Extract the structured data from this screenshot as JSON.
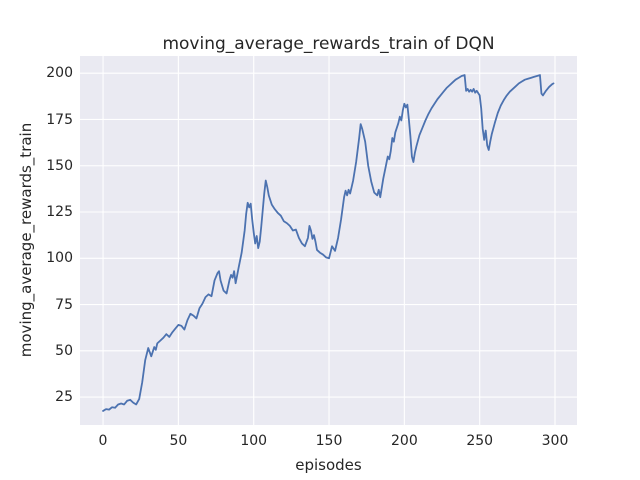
{
  "figure": {
    "title": "moving_average_rewards_train of DQN"
  },
  "chart_data": {
    "type": "line",
    "title": "moving_average_rewards_train of DQN",
    "xlabel": "episodes",
    "ylabel": "moving_average_rewards_train",
    "xlim": [
      -15.3,
      314.6
    ],
    "ylim": [
      9.9,
      209.3
    ],
    "xticks": [
      0,
      50,
      100,
      150,
      200,
      250,
      300
    ],
    "yticks": [
      25,
      50,
      75,
      100,
      125,
      150,
      175,
      200
    ],
    "grid": true,
    "legend_position": "none",
    "style": {
      "axes_background": "#EAEAF2",
      "grid_color": "#FFFFFF",
      "line_color": "#4C72B0",
      "text_color": "#262626",
      "line_width": 1.8
    },
    "series": [
      {
        "name": "moving_average_rewards_train",
        "x": [
          0,
          2,
          4,
          6,
          8,
          10,
          12,
          14,
          16,
          18,
          20,
          22,
          24,
          26,
          28,
          30,
          32,
          34,
          35,
          36,
          38,
          40,
          42,
          44,
          46,
          48,
          50,
          52,
          54,
          56,
          58,
          60,
          62,
          64,
          66,
          68,
          70,
          72,
          74,
          76,
          77,
          78,
          80,
          82,
          84,
          85,
          86,
          87,
          88,
          90,
          92,
          94,
          95,
          96,
          97,
          98,
          99,
          100,
          101,
          102,
          103,
          104,
          105,
          106,
          107,
          108,
          109,
          110,
          112,
          114,
          116,
          118,
          120,
          122,
          124,
          126,
          128,
          130,
          132,
          134,
          136,
          137,
          138,
          139,
          140,
          141,
          142,
          144,
          146,
          148,
          150,
          152,
          154,
          156,
          158,
          160,
          161,
          162,
          163,
          164,
          165,
          166,
          168,
          170,
          171,
          172,
          174,
          176,
          178,
          180,
          182,
          183,
          184,
          186,
          188,
          189,
          190,
          191,
          192,
          193,
          194,
          196,
          197,
          198,
          199,
          200,
          201,
          202,
          203,
          204,
          205,
          206,
          207,
          208,
          210,
          212,
          214,
          216,
          218,
          220,
          222,
          224,
          226,
          228,
          230,
          232,
          234,
          236,
          238,
          240,
          241,
          242,
          243,
          244,
          245,
          246,
          247,
          248,
          250,
          251,
          252,
          253,
          254,
          255,
          256,
          257,
          258,
          260,
          262,
          264,
          266,
          268,
          270,
          272,
          274,
          276,
          278,
          280,
          282,
          284,
          286,
          288,
          290,
          291,
          292,
          294,
          296,
          298,
          299
        ],
        "y": [
          17.5,
          18.5,
          18.2,
          19.5,
          19.2,
          21.0,
          21.5,
          21.0,
          23.0,
          23.5,
          22.0,
          21.0,
          24.0,
          33.0,
          45.0,
          51.5,
          47.0,
          52.0,
          50.5,
          54.0,
          55.5,
          57.0,
          59.0,
          57.5,
          60.0,
          62.0,
          64.0,
          63.5,
          61.5,
          66.5,
          70.0,
          69.0,
          67.5,
          73.0,
          75.5,
          79.0,
          80.5,
          79.5,
          88.0,
          92.0,
          93.0,
          88.0,
          82.5,
          81.0,
          88.5,
          91.0,
          89.5,
          93.0,
          86.5,
          95.0,
          103.0,
          115.0,
          124.0,
          130.0,
          127.5,
          129.5,
          121.0,
          114.0,
          108.0,
          112.0,
          105.5,
          109.0,
          117.0,
          126.0,
          135.0,
          142.0,
          138.5,
          134.0,
          129.0,
          126.5,
          124.5,
          123.0,
          120.0,
          119.0,
          117.5,
          115.0,
          115.5,
          111.0,
          108.0,
          106.5,
          111.0,
          117.5,
          115.0,
          110.5,
          112.5,
          109.0,
          104.5,
          103.0,
          102.0,
          100.5,
          100.0,
          106.5,
          104.0,
          111.0,
          121.0,
          133.0,
          136.5,
          134.0,
          137.0,
          135.0,
          138.5,
          142.0,
          152.0,
          165.0,
          172.5,
          170.0,
          163.0,
          150.0,
          141.5,
          135.5,
          134.0,
          137.0,
          133.0,
          143.0,
          151.0,
          155.0,
          153.5,
          158.0,
          165.0,
          163.0,
          168.0,
          173.0,
          176.5,
          174.5,
          180.0,
          183.5,
          181.5,
          183.0,
          175.0,
          166.0,
          155.0,
          152.0,
          157.0,
          160.5,
          166.5,
          170.5,
          174.5,
          178.0,
          181.0,
          183.5,
          186.0,
          188.0,
          190.0,
          192.0,
          193.5,
          195.0,
          196.5,
          197.5,
          198.5,
          199.0,
          190.5,
          191.5,
          190.0,
          191.0,
          190.0,
          191.5,
          189.5,
          190.5,
          188.0,
          181.0,
          170.0,
          164.0,
          169.0,
          161.0,
          158.5,
          163.0,
          167.0,
          173.0,
          178.5,
          182.5,
          185.5,
          188.0,
          190.0,
          191.5,
          193.0,
          194.5,
          195.5,
          196.5,
          197.0,
          197.5,
          198.0,
          198.5,
          199.0,
          189.0,
          188.0,
          190.5,
          192.5,
          194.0,
          194.5
        ]
      }
    ]
  }
}
